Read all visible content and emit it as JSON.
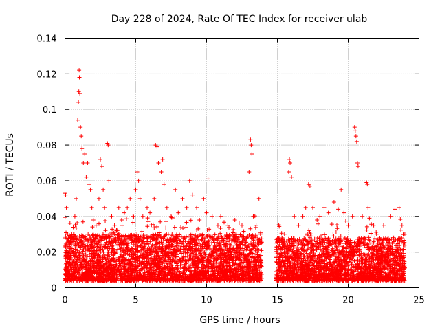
{
  "chart_data": {
    "type": "scatter",
    "title": "Day 228 of 2024, Rate Of TEC Index for receiver ulab",
    "xlabel": "GPS time / hours",
    "ylabel": "ROTI / TECUs",
    "xlim": [
      0,
      25
    ],
    "ylim": [
      0,
      0.14
    ],
    "xticks": [
      0,
      5,
      10,
      15,
      20,
      25
    ],
    "xtick_labels": [
      "0",
      "5",
      "10",
      "15",
      "20",
      "25"
    ],
    "yticks": [
      0,
      0.02,
      0.04,
      0.06,
      0.08,
      0.1,
      0.12,
      0.14
    ],
    "ytick_labels": [
      "0",
      "0.02",
      "0.04",
      "0.06",
      "0.08",
      "0.1",
      "0.12",
      "0.14"
    ],
    "grid": true,
    "marker": "plus",
    "color": "#ff0000",
    "series": [
      {
        "name": "ROTI",
        "points": [
          [
            0.0,
            0.053
          ],
          [
            0.05,
            0.052
          ],
          [
            0.1,
            0.045
          ],
          [
            0.2,
            0.03
          ],
          [
            0.3,
            0.025
          ],
          [
            0.4,
            0.028
          ],
          [
            0.5,
            0.022
          ],
          [
            0.6,
            0.03
          ],
          [
            0.7,
            0.04
          ],
          [
            0.8,
            0.05
          ],
          [
            0.9,
            0.094
          ],
          [
            0.95,
            0.104
          ],
          [
            0.98,
            0.11
          ],
          [
            1.0,
            0.122
          ],
          [
            1.02,
            0.118
          ],
          [
            1.05,
            0.109
          ],
          [
            1.1,
            0.09
          ],
          [
            1.15,
            0.085
          ],
          [
            1.2,
            0.078
          ],
          [
            1.3,
            0.07
          ],
          [
            1.4,
            0.075
          ],
          [
            1.5,
            0.062
          ],
          [
            1.6,
            0.07
          ],
          [
            1.7,
            0.058
          ],
          [
            1.8,
            0.055
          ],
          [
            1.9,
            0.045
          ],
          [
            2.0,
            0.038
          ],
          [
            2.2,
            0.035
          ],
          [
            2.4,
            0.05
          ],
          [
            2.5,
            0.072
          ],
          [
            2.6,
            0.068
          ],
          [
            2.7,
            0.055
          ],
          [
            2.8,
            0.045
          ],
          [
            3.0,
            0.081
          ],
          [
            3.05,
            0.08
          ],
          [
            3.1,
            0.06
          ],
          [
            3.3,
            0.04
          ],
          [
            3.5,
            0.035
          ],
          [
            3.8,
            0.045
          ],
          [
            4.0,
            0.038
          ],
          [
            4.2,
            0.042
          ],
          [
            4.4,
            0.045
          ],
          [
            4.6,
            0.05
          ],
          [
            4.8,
            0.04
          ],
          [
            5.0,
            0.055
          ],
          [
            5.1,
            0.065
          ],
          [
            5.2,
            0.06
          ],
          [
            5.3,
            0.05
          ],
          [
            5.5,
            0.04
          ],
          [
            5.8,
            0.045
          ],
          [
            6.0,
            0.042
          ],
          [
            6.3,
            0.05
          ],
          [
            6.4,
            0.08
          ],
          [
            6.5,
            0.079
          ],
          [
            6.6,
            0.07
          ],
          [
            6.8,
            0.065
          ],
          [
            6.9,
            0.072
          ],
          [
            7.0,
            0.058
          ],
          [
            7.2,
            0.045
          ],
          [
            7.5,
            0.04
          ],
          [
            7.8,
            0.055
          ],
          [
            8.0,
            0.042
          ],
          [
            8.3,
            0.05
          ],
          [
            8.6,
            0.045
          ],
          [
            8.8,
            0.06
          ],
          [
            9.0,
            0.052
          ],
          [
            9.3,
            0.045
          ],
          [
            9.5,
            0.038
          ],
          [
            9.8,
            0.05
          ],
          [
            10.0,
            0.042
          ],
          [
            10.1,
            0.061
          ],
          [
            10.4,
            0.04
          ],
          [
            10.8,
            0.035
          ],
          [
            11.0,
            0.04
          ],
          [
            11.5,
            0.035
          ],
          [
            12.0,
            0.038
          ],
          [
            12.5,
            0.035
          ],
          [
            13.0,
            0.065
          ],
          [
            13.1,
            0.083
          ],
          [
            13.15,
            0.08
          ],
          [
            13.2,
            0.075
          ],
          [
            13.3,
            0.04
          ],
          [
            13.5,
            0.035
          ],
          [
            13.7,
            0.05
          ],
          [
            13.8,
            0.03
          ],
          [
            14.9,
            0.025
          ],
          [
            15.2,
            0.022
          ],
          [
            15.5,
            0.03
          ],
          [
            15.8,
            0.065
          ],
          [
            15.85,
            0.072
          ],
          [
            15.9,
            0.07
          ],
          [
            16.0,
            0.062
          ],
          [
            16.2,
            0.04
          ],
          [
            16.5,
            0.035
          ],
          [
            16.8,
            0.04
          ],
          [
            17.0,
            0.045
          ],
          [
            17.2,
            0.058
          ],
          [
            17.3,
            0.057
          ],
          [
            17.5,
            0.045
          ],
          [
            17.8,
            0.038
          ],
          [
            18.0,
            0.04
          ],
          [
            18.3,
            0.045
          ],
          [
            18.6,
            0.042
          ],
          [
            19.0,
            0.048
          ],
          [
            19.3,
            0.044
          ],
          [
            19.5,
            0.055
          ],
          [
            19.7,
            0.042
          ],
          [
            20.0,
            0.035
          ],
          [
            20.3,
            0.04
          ],
          [
            20.45,
            0.09
          ],
          [
            20.5,
            0.088
          ],
          [
            20.55,
            0.085
          ],
          [
            20.6,
            0.082
          ],
          [
            20.65,
            0.07
          ],
          [
            20.7,
            0.068
          ],
          [
            21.0,
            0.04
          ],
          [
            21.3,
            0.059
          ],
          [
            21.35,
            0.058
          ],
          [
            21.4,
            0.045
          ],
          [
            21.5,
            0.039
          ],
          [
            21.8,
            0.035
          ],
          [
            22.0,
            0.03
          ],
          [
            22.5,
            0.035
          ],
          [
            23.0,
            0.04
          ],
          [
            23.3,
            0.044
          ],
          [
            23.6,
            0.045
          ],
          [
            23.8,
            0.035
          ],
          [
            24.0,
            0.03
          ]
        ]
      }
    ],
    "density_bands": [
      {
        "name": "dense-band-1",
        "x_range": [
          0.0,
          13.9
        ],
        "y_range": [
          0.004,
          0.03
        ]
      },
      {
        "name": "dense-band-2",
        "x_range": [
          14.9,
          24.0
        ],
        "y_range": [
          0.004,
          0.028
        ]
      }
    ]
  }
}
